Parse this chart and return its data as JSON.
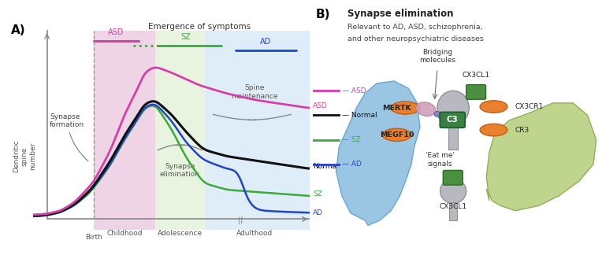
{
  "panel_A": {
    "label": "A)",
    "ylabel": "Dendritic\nspine\nnumber",
    "xlabel_birth": "Birth",
    "xlabel_childhood": "Childhood",
    "xlabel_adolescence": "Adolescence",
    "xlabel_adulthood": "Adulthood",
    "title_emergence": "Emergence of symptoms",
    "label_asd_bar": "ASD",
    "label_sz_bar": "SZ",
    "label_ad_bar": "AD",
    "label_synapse_formation": "Synapse\nformation",
    "label_synapse_elimination": "Synapse\nelimination",
    "label_spine_maintenance": "Spine\nmaintenance",
    "label_asd_line": "ASD",
    "label_normal_line": "Normal",
    "label_sz_line": "SZ",
    "label_ad_line": "AD",
    "color_asd": "#d63fa8",
    "color_normal": "#111111",
    "color_sz": "#3aaa3a",
    "color_ad": "#2244cc",
    "color_childhood_bg": "#dda0c8",
    "color_adolescence_bg": "#cce8b8",
    "color_adulthood_bg": "#b8d8f0",
    "color_annotation": "#888888"
  },
  "panel_B": {
    "label": "B)",
    "title_line1": "Synapse elimination",
    "title_line2": "Relevant to AD, ASD, schizophrenia,",
    "title_line3": "and other neuropsychiatric diseases",
    "label_bridging": "Bridging\nmolecules",
    "label_mertk": "MERTK",
    "label_megf10": "MEGF10",
    "label_c3": "C3",
    "label_eatme": "'Eat me'\nsignals",
    "label_cx3cl1_top": "CX3CL1",
    "label_cx3cr1": "CX3CR1",
    "label_cr3": "CR3",
    "label_cx3cl1_bot": "CX3CL1",
    "color_astrocyte": "#90c0e0",
    "color_astrocyte_edge": "#60a0cc",
    "color_microglia": "#b8d080",
    "color_microglia_edge": "#88aa50",
    "color_synapse_body": "#b8b8c0",
    "color_synapse_edge": "#909090",
    "color_receptor_orange": "#e88030",
    "color_receptor_orange_edge": "#c06010",
    "color_receptor_green": "#4a9040",
    "color_receptor_green_edge": "#2a7020",
    "color_c3_green": "#3a8040",
    "color_c3_text": "white",
    "color_bridging_pink": "#d090b0",
    "color_bridging_purple": "#8888cc",
    "label_asd_legend": "ASD",
    "label_normal_legend": "Normal",
    "label_sz_legend": "SZ",
    "label_ad_legend": "AD",
    "color_asd": "#d63fa8",
    "color_normal": "#111111",
    "color_sz": "#3aaa3a",
    "color_ad": "#2244cc"
  }
}
